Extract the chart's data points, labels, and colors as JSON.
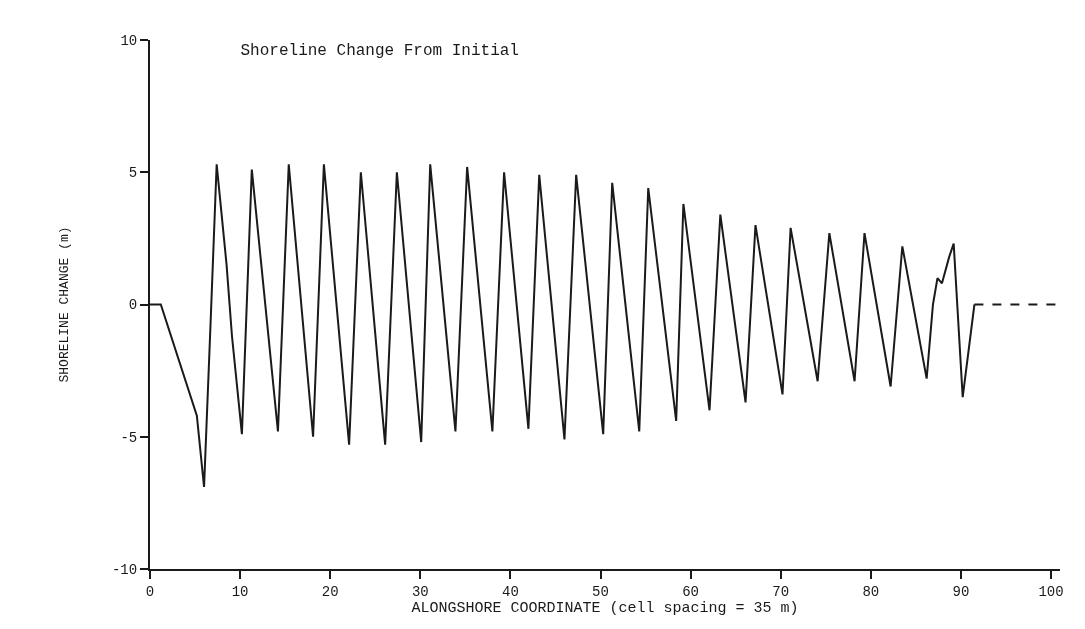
{
  "chart_data": {
    "type": "line",
    "title": "Shoreline Change From Initial",
    "xlabel": "ALONGSHORE COORDINATE (cell spacing = 35 m)",
    "ylabel": "SHORELINE CHANGE (m)",
    "xlim": [
      0,
      101
    ],
    "xticks": [
      0,
      10,
      20,
      30,
      40,
      50,
      60,
      70,
      80,
      90,
      100
    ],
    "ylim": [
      -10,
      10
    ],
    "yticks": [
      -10,
      -5,
      0,
      5,
      10
    ],
    "marker": "none",
    "series": [
      {
        "color": "#1a1a1a",
        "line_style": "solid",
        "x": [
          0,
          1.2,
          5.2,
          6.0,
          6.7,
          7.4,
          8.5,
          9.1,
          10.2,
          11.3,
          14.2,
          15.4,
          18.1,
          19.3,
          22.1,
          23.4,
          26.1,
          27.4,
          30.1,
          31.1,
          33.9,
          35.2,
          38.0,
          39.3,
          42.0,
          43.2,
          46.0,
          47.3,
          50.3,
          51.3,
          54.3,
          55.3,
          58.4,
          59.2,
          62.1,
          63.3,
          66.1,
          67.2,
          70.2,
          71.1,
          74.1,
          75.4,
          78.2,
          79.3,
          82.2,
          83.5,
          86.2,
          86.9,
          87.4,
          87.9,
          88.7,
          89.2,
          90.2,
          91.5
        ],
        "values": [
          0,
          0,
          -4.2,
          -6.9,
          -0.9,
          5.3,
          1.5,
          -1.2,
          -4.9,
          5.1,
          -4.8,
          5.3,
          -5.0,
          5.3,
          -5.3,
          5.0,
          -5.3,
          5.0,
          -5.2,
          5.3,
          -4.8,
          5.2,
          -4.8,
          5.0,
          -4.7,
          4.9,
          -5.1,
          4.9,
          -4.9,
          4.6,
          -4.8,
          4.4,
          -4.4,
          3.8,
          -4.0,
          3.4,
          -3.7,
          3.0,
          -3.4,
          2.9,
          -2.9,
          2.7,
          -2.9,
          2.7,
          -3.1,
          2.2,
          -2.8,
          0,
          1.0,
          0.8,
          1.8,
          2.3,
          -3.5,
          0
        ]
      },
      {
        "color": "#1a1a1a",
        "line_style": "dashed",
        "x": [
          91.5,
          100.5
        ],
        "values": [
          0,
          0
        ]
      }
    ]
  }
}
